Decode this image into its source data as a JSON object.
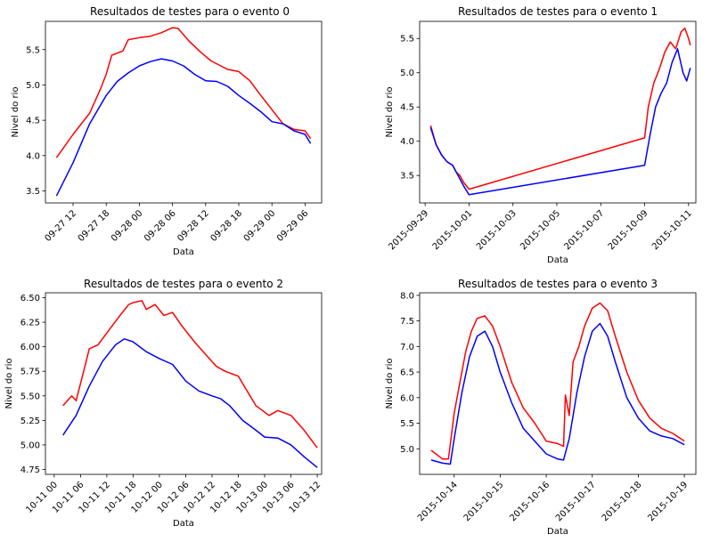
{
  "colors": {
    "series_a": "#ff0000",
    "series_b": "#0000ff",
    "background": "#ffffff",
    "axes": "#000000"
  },
  "chart_data": [
    {
      "type": "line",
      "title": "Resultados de testes para o evento 0",
      "xlabel": "Data",
      "ylabel": "Nivel do rio",
      "x_type": "datetime",
      "xlim": [
        "2015-09-27T07:00",
        "2015-09-29T09:00"
      ],
      "ylim": [
        3.33,
        5.9
      ],
      "xticks": [
        {
          "label": "09-27 12",
          "value": "2015-09-27T12:00"
        },
        {
          "label": "09-27 18",
          "value": "2015-09-27T18:00"
        },
        {
          "label": "09-28 00",
          "value": "2015-09-28T00:00"
        },
        {
          "label": "09-28 06",
          "value": "2015-09-28T06:00"
        },
        {
          "label": "09-28 12",
          "value": "2015-09-28T12:00"
        },
        {
          "label": "09-28 18",
          "value": "2015-09-28T18:00"
        },
        {
          "label": "09-29 00",
          "value": "2015-09-29T00:00"
        },
        {
          "label": "09-29 06",
          "value": "2015-09-29T06:00"
        }
      ],
      "yticks": [
        3.5,
        4.0,
        4.5,
        5.0,
        5.5
      ],
      "ytick_labels": [
        "3.5",
        "4.0",
        "4.5",
        "5.0",
        "5.5"
      ],
      "grid": false,
      "series": [
        {
          "color": "#ff0000",
          "x": [
            "2015-09-27T09:00",
            "2015-09-27T12:00",
            "2015-09-27T15:00",
            "2015-09-27T17:00",
            "2015-09-27T18:00",
            "2015-09-27T19:00",
            "2015-09-27T21:00",
            "2015-09-27T22:00",
            "2015-09-28T00:00",
            "2015-09-28T02:00",
            "2015-09-28T04:00",
            "2015-09-28T06:00",
            "2015-09-28T07:00",
            "2015-09-28T09:00",
            "2015-09-28T11:00",
            "2015-09-28T13:00",
            "2015-09-28T16:00",
            "2015-09-28T18:00",
            "2015-09-28T20:00",
            "2015-09-28T22:00",
            "2015-09-29T00:00",
            "2015-09-29T02:00",
            "2015-09-29T04:00",
            "2015-09-29T06:00",
            "2015-09-29T07:00"
          ],
          "y": [
            3.97,
            4.3,
            4.6,
            4.95,
            5.15,
            5.42,
            5.48,
            5.64,
            5.67,
            5.69,
            5.74,
            5.81,
            5.8,
            5.62,
            5.47,
            5.34,
            5.22,
            5.19,
            5.06,
            4.85,
            4.65,
            4.45,
            4.37,
            4.35,
            4.24
          ]
        },
        {
          "color": "#0000ff",
          "x": [
            "2015-09-27T09:00",
            "2015-09-27T12:00",
            "2015-09-27T15:00",
            "2015-09-27T18:00",
            "2015-09-27T20:00",
            "2015-09-27T22:00",
            "2015-09-28T00:00",
            "2015-09-28T02:00",
            "2015-09-28T04:00",
            "2015-09-28T06:00",
            "2015-09-28T08:00",
            "2015-09-28T10:00",
            "2015-09-28T12:00",
            "2015-09-28T14:00",
            "2015-09-28T16:00",
            "2015-09-28T18:00",
            "2015-09-28T20:00",
            "2015-09-28T22:00",
            "2015-09-29T00:00",
            "2015-09-29T02:00",
            "2015-09-29T04:00",
            "2015-09-29T06:00",
            "2015-09-29T07:00"
          ],
          "y": [
            3.43,
            3.9,
            4.45,
            4.85,
            5.05,
            5.17,
            5.27,
            5.33,
            5.37,
            5.34,
            5.27,
            5.15,
            5.06,
            5.05,
            4.98,
            4.85,
            4.74,
            4.62,
            4.48,
            4.45,
            4.35,
            4.3,
            4.17
          ]
        }
      ]
    },
    {
      "type": "line",
      "title": "Resultados de testes para o evento 1",
      "xlabel": "Data",
      "ylabel": "Nivel do rio",
      "x_type": "datetime",
      "xlim": [
        "2015-09-28T18:00",
        "2015-10-11T08:00"
      ],
      "ylim": [
        3.1,
        5.75
      ],
      "xticks": [
        {
          "label": "2015-09-29",
          "value": "2015-09-29T00:00"
        },
        {
          "label": "2015-10-01",
          "value": "2015-10-01T00:00"
        },
        {
          "label": "2015-10-03",
          "value": "2015-10-03T00:00"
        },
        {
          "label": "2015-10-05",
          "value": "2015-10-05T00:00"
        },
        {
          "label": "2015-10-07",
          "value": "2015-10-07T00:00"
        },
        {
          "label": "2015-10-09",
          "value": "2015-10-09T00:00"
        },
        {
          "label": "2015-10-11",
          "value": "2015-10-11T00:00"
        }
      ],
      "yticks": [
        3.5,
        4.0,
        4.5,
        5.0,
        5.5
      ],
      "ytick_labels": [
        "3.5",
        "4.0",
        "4.5",
        "5.0",
        "5.5"
      ],
      "grid": false,
      "series": [
        {
          "color": "#ff0000",
          "x": [
            "2015-09-29T06:00",
            "2015-09-29T12:00",
            "2015-09-29T18:00",
            "2015-09-30T00:00",
            "2015-09-30T06:00",
            "2015-09-30T10:00",
            "2015-09-30T14:00",
            "2015-09-30T18:00",
            "2015-10-01T00:00",
            "2015-10-09T00:00",
            "2015-10-09T04:00",
            "2015-10-09T10:00",
            "2015-10-09T16:00",
            "2015-10-09T22:00",
            "2015-10-10T04:00",
            "2015-10-10T10:00",
            "2015-10-10T16:00",
            "2015-10-10T20:00",
            "2015-10-11T00:00",
            "2015-10-11T02:00"
          ],
          "y": [
            4.23,
            3.95,
            3.8,
            3.7,
            3.65,
            3.55,
            3.5,
            3.4,
            3.3,
            4.05,
            4.5,
            4.85,
            5.05,
            5.3,
            5.45,
            5.35,
            5.6,
            5.65,
            5.5,
            5.4
          ]
        },
        {
          "color": "#0000ff",
          "x": [
            "2015-09-29T06:00",
            "2015-09-29T12:00",
            "2015-09-29T18:00",
            "2015-09-30T00:00",
            "2015-09-30T06:00",
            "2015-09-30T10:00",
            "2015-09-30T14:00",
            "2015-09-30T18:00",
            "2015-10-01T00:00",
            "2015-10-09T00:00",
            "2015-10-09T06:00",
            "2015-10-09T12:00",
            "2015-10-09T18:00",
            "2015-10-10T00:00",
            "2015-10-10T06:00",
            "2015-10-10T12:00",
            "2015-10-10T18:00",
            "2015-10-10T22:00",
            "2015-10-11T02:00"
          ],
          "y": [
            4.2,
            3.95,
            3.8,
            3.7,
            3.65,
            3.55,
            3.45,
            3.35,
            3.22,
            3.65,
            4.1,
            4.5,
            4.7,
            4.85,
            5.15,
            5.35,
            5.0,
            4.88,
            5.07
          ]
        }
      ]
    },
    {
      "type": "line",
      "title": "Resultados de testes para o evento 2",
      "xlabel": "Data",
      "ylabel": "Nivel do rio",
      "x_type": "datetime",
      "xlim": [
        "2015-10-10T22:00",
        "2015-10-13T13:00"
      ],
      "ylim": [
        4.7,
        6.55
      ],
      "xticks": [
        {
          "label": "10-11 00",
          "value": "2015-10-11T00:00"
        },
        {
          "label": "10-11 06",
          "value": "2015-10-11T06:00"
        },
        {
          "label": "10-11 12",
          "value": "2015-10-11T12:00"
        },
        {
          "label": "10-11 18",
          "value": "2015-10-11T18:00"
        },
        {
          "label": "10-12 00",
          "value": "2015-10-12T00:00"
        },
        {
          "label": "10-12 06",
          "value": "2015-10-12T06:00"
        },
        {
          "label": "10-12 12",
          "value": "2015-10-12T12:00"
        },
        {
          "label": "10-12 18",
          "value": "2015-10-12T18:00"
        },
        {
          "label": "10-13 00",
          "value": "2015-10-13T00:00"
        },
        {
          "label": "10-13 06",
          "value": "2015-10-13T06:00"
        },
        {
          "label": "10-13 12",
          "value": "2015-10-13T12:00"
        }
      ],
      "yticks": [
        4.75,
        5.0,
        5.25,
        5.5,
        5.75,
        6.0,
        6.25,
        6.5
      ],
      "ytick_labels": [
        "4.75",
        "5.00",
        "5.25",
        "5.50",
        "5.75",
        "6.00",
        "6.25",
        "6.50"
      ],
      "grid": false,
      "series": [
        {
          "color": "#ff0000",
          "x": [
            "2015-10-11T02:00",
            "2015-10-11T04:00",
            "2015-10-11T05:00",
            "2015-10-11T07:00",
            "2015-10-11T08:00",
            "2015-10-11T10:00",
            "2015-10-11T13:00",
            "2015-10-11T15:00",
            "2015-10-11T17:00",
            "2015-10-11T18:00",
            "2015-10-11T20:00",
            "2015-10-11T21:00",
            "2015-10-11T23:00",
            "2015-10-12T01:00",
            "2015-10-12T03:00",
            "2015-10-12T05:00",
            "2015-10-12T08:00",
            "2015-10-12T10:00",
            "2015-10-12T13:00",
            "2015-10-12T15:00",
            "2015-10-12T18:00",
            "2015-10-12T20:00",
            "2015-10-12T22:00",
            "2015-10-13T01:00",
            "2015-10-13T03:00",
            "2015-10-13T06:00",
            "2015-10-13T09:00",
            "2015-10-13T12:00"
          ],
          "y": [
            5.4,
            5.5,
            5.45,
            5.8,
            5.98,
            6.02,
            6.2,
            6.32,
            6.43,
            6.45,
            6.47,
            6.38,
            6.43,
            6.32,
            6.35,
            6.22,
            6.05,
            5.95,
            5.8,
            5.75,
            5.7,
            5.55,
            5.4,
            5.3,
            5.35,
            5.3,
            5.15,
            4.97
          ]
        },
        {
          "color": "#0000ff",
          "x": [
            "2015-10-11T02:00",
            "2015-10-11T05:00",
            "2015-10-11T08:00",
            "2015-10-11T11:00",
            "2015-10-11T14:00",
            "2015-10-11T16:00",
            "2015-10-11T18:00",
            "2015-10-11T21:00",
            "2015-10-12T00:00",
            "2015-10-12T03:00",
            "2015-10-12T06:00",
            "2015-10-12T09:00",
            "2015-10-12T12:00",
            "2015-10-12T14:00",
            "2015-10-12T16:00",
            "2015-10-12T19:00",
            "2015-10-12T22:00",
            "2015-10-13T00:00",
            "2015-10-13T03:00",
            "2015-10-13T06:00",
            "2015-10-13T09:00",
            "2015-10-13T12:00"
          ],
          "y": [
            5.1,
            5.3,
            5.6,
            5.85,
            6.02,
            6.08,
            6.05,
            5.95,
            5.88,
            5.82,
            5.65,
            5.55,
            5.5,
            5.47,
            5.4,
            5.25,
            5.15,
            5.08,
            5.07,
            5.0,
            4.88,
            4.77
          ]
        }
      ]
    },
    {
      "type": "line",
      "title": "Resultados de testes para o evento 3",
      "xlabel": "Data",
      "ylabel": "Nivel do rio",
      "x_type": "datetime",
      "xlim": [
        "2015-10-13T06:00",
        "2015-10-19T06:00"
      ],
      "ylim": [
        4.5,
        8.05
      ],
      "xticks": [
        {
          "label": "2015-10-14",
          "value": "2015-10-14T00:00"
        },
        {
          "label": "2015-10-15",
          "value": "2015-10-15T00:00"
        },
        {
          "label": "2015-10-16",
          "value": "2015-10-16T00:00"
        },
        {
          "label": "2015-10-17",
          "value": "2015-10-17T00:00"
        },
        {
          "label": "2015-10-18",
          "value": "2015-10-18T00:00"
        },
        {
          "label": "2015-10-19",
          "value": "2015-10-19T00:00"
        }
      ],
      "yticks": [
        5.0,
        5.5,
        6.0,
        6.5,
        7.0,
        7.5,
        8.0
      ],
      "ytick_labels": [
        "5.0",
        "5.5",
        "6.0",
        "6.5",
        "7.0",
        "7.5",
        "8.0"
      ],
      "grid": false,
      "series": [
        {
          "color": "#ff0000",
          "x": [
            "2015-10-13T12:00",
            "2015-10-13T18:00",
            "2015-10-13T21:00",
            "2015-10-14T00:00",
            "2015-10-14T03:00",
            "2015-10-14T06:00",
            "2015-10-14T09:00",
            "2015-10-14T12:00",
            "2015-10-14T16:00",
            "2015-10-14T20:00",
            "2015-10-15T00:00",
            "2015-10-15T06:00",
            "2015-10-15T12:00",
            "2015-10-15T18:00",
            "2015-10-16T00:00",
            "2015-10-16T06:00",
            "2015-10-16T09:00",
            "2015-10-16T10:00",
            "2015-10-16T12:00",
            "2015-10-16T14:00",
            "2015-10-16T17:00",
            "2015-10-16T20:00",
            "2015-10-17T00:00",
            "2015-10-17T04:00",
            "2015-10-17T08:00",
            "2015-10-17T12:00",
            "2015-10-17T18:00",
            "2015-10-18T00:00",
            "2015-10-18T06:00",
            "2015-10-18T12:00",
            "2015-10-18T18:00",
            "2015-10-19T00:00"
          ],
          "y": [
            4.97,
            4.8,
            4.8,
            5.7,
            6.3,
            6.9,
            7.3,
            7.55,
            7.6,
            7.4,
            7.0,
            6.3,
            5.8,
            5.5,
            5.15,
            5.1,
            5.05,
            6.05,
            5.65,
            6.7,
            7.0,
            7.4,
            7.75,
            7.85,
            7.7,
            7.2,
            6.5,
            5.95,
            5.6,
            5.4,
            5.3,
            5.15
          ]
        },
        {
          "color": "#0000ff",
          "x": [
            "2015-10-13T12:00",
            "2015-10-13T18:00",
            "2015-10-13T22:00",
            "2015-10-14T00:00",
            "2015-10-14T04:00",
            "2015-10-14T08:00",
            "2015-10-14T12:00",
            "2015-10-14T16:00",
            "2015-10-14T20:00",
            "2015-10-15T00:00",
            "2015-10-15T06:00",
            "2015-10-15T12:00",
            "2015-10-15T18:00",
            "2015-10-16T00:00",
            "2015-10-16T06:00",
            "2015-10-16T09:00",
            "2015-10-16T12:00",
            "2015-10-16T16:00",
            "2015-10-16T20:00",
            "2015-10-17T00:00",
            "2015-10-17T04:00",
            "2015-10-17T08:00",
            "2015-10-17T12:00",
            "2015-10-17T18:00",
            "2015-10-18T00:00",
            "2015-10-18T06:00",
            "2015-10-18T12:00",
            "2015-10-18T18:00",
            "2015-10-19T00:00"
          ],
          "y": [
            4.78,
            4.72,
            4.7,
            5.2,
            6.1,
            6.8,
            7.2,
            7.3,
            7.0,
            6.5,
            5.9,
            5.4,
            5.15,
            4.9,
            4.8,
            4.78,
            5.2,
            6.1,
            6.8,
            7.3,
            7.45,
            7.2,
            6.7,
            6.0,
            5.6,
            5.35,
            5.25,
            5.2,
            5.08
          ]
        }
      ]
    }
  ]
}
